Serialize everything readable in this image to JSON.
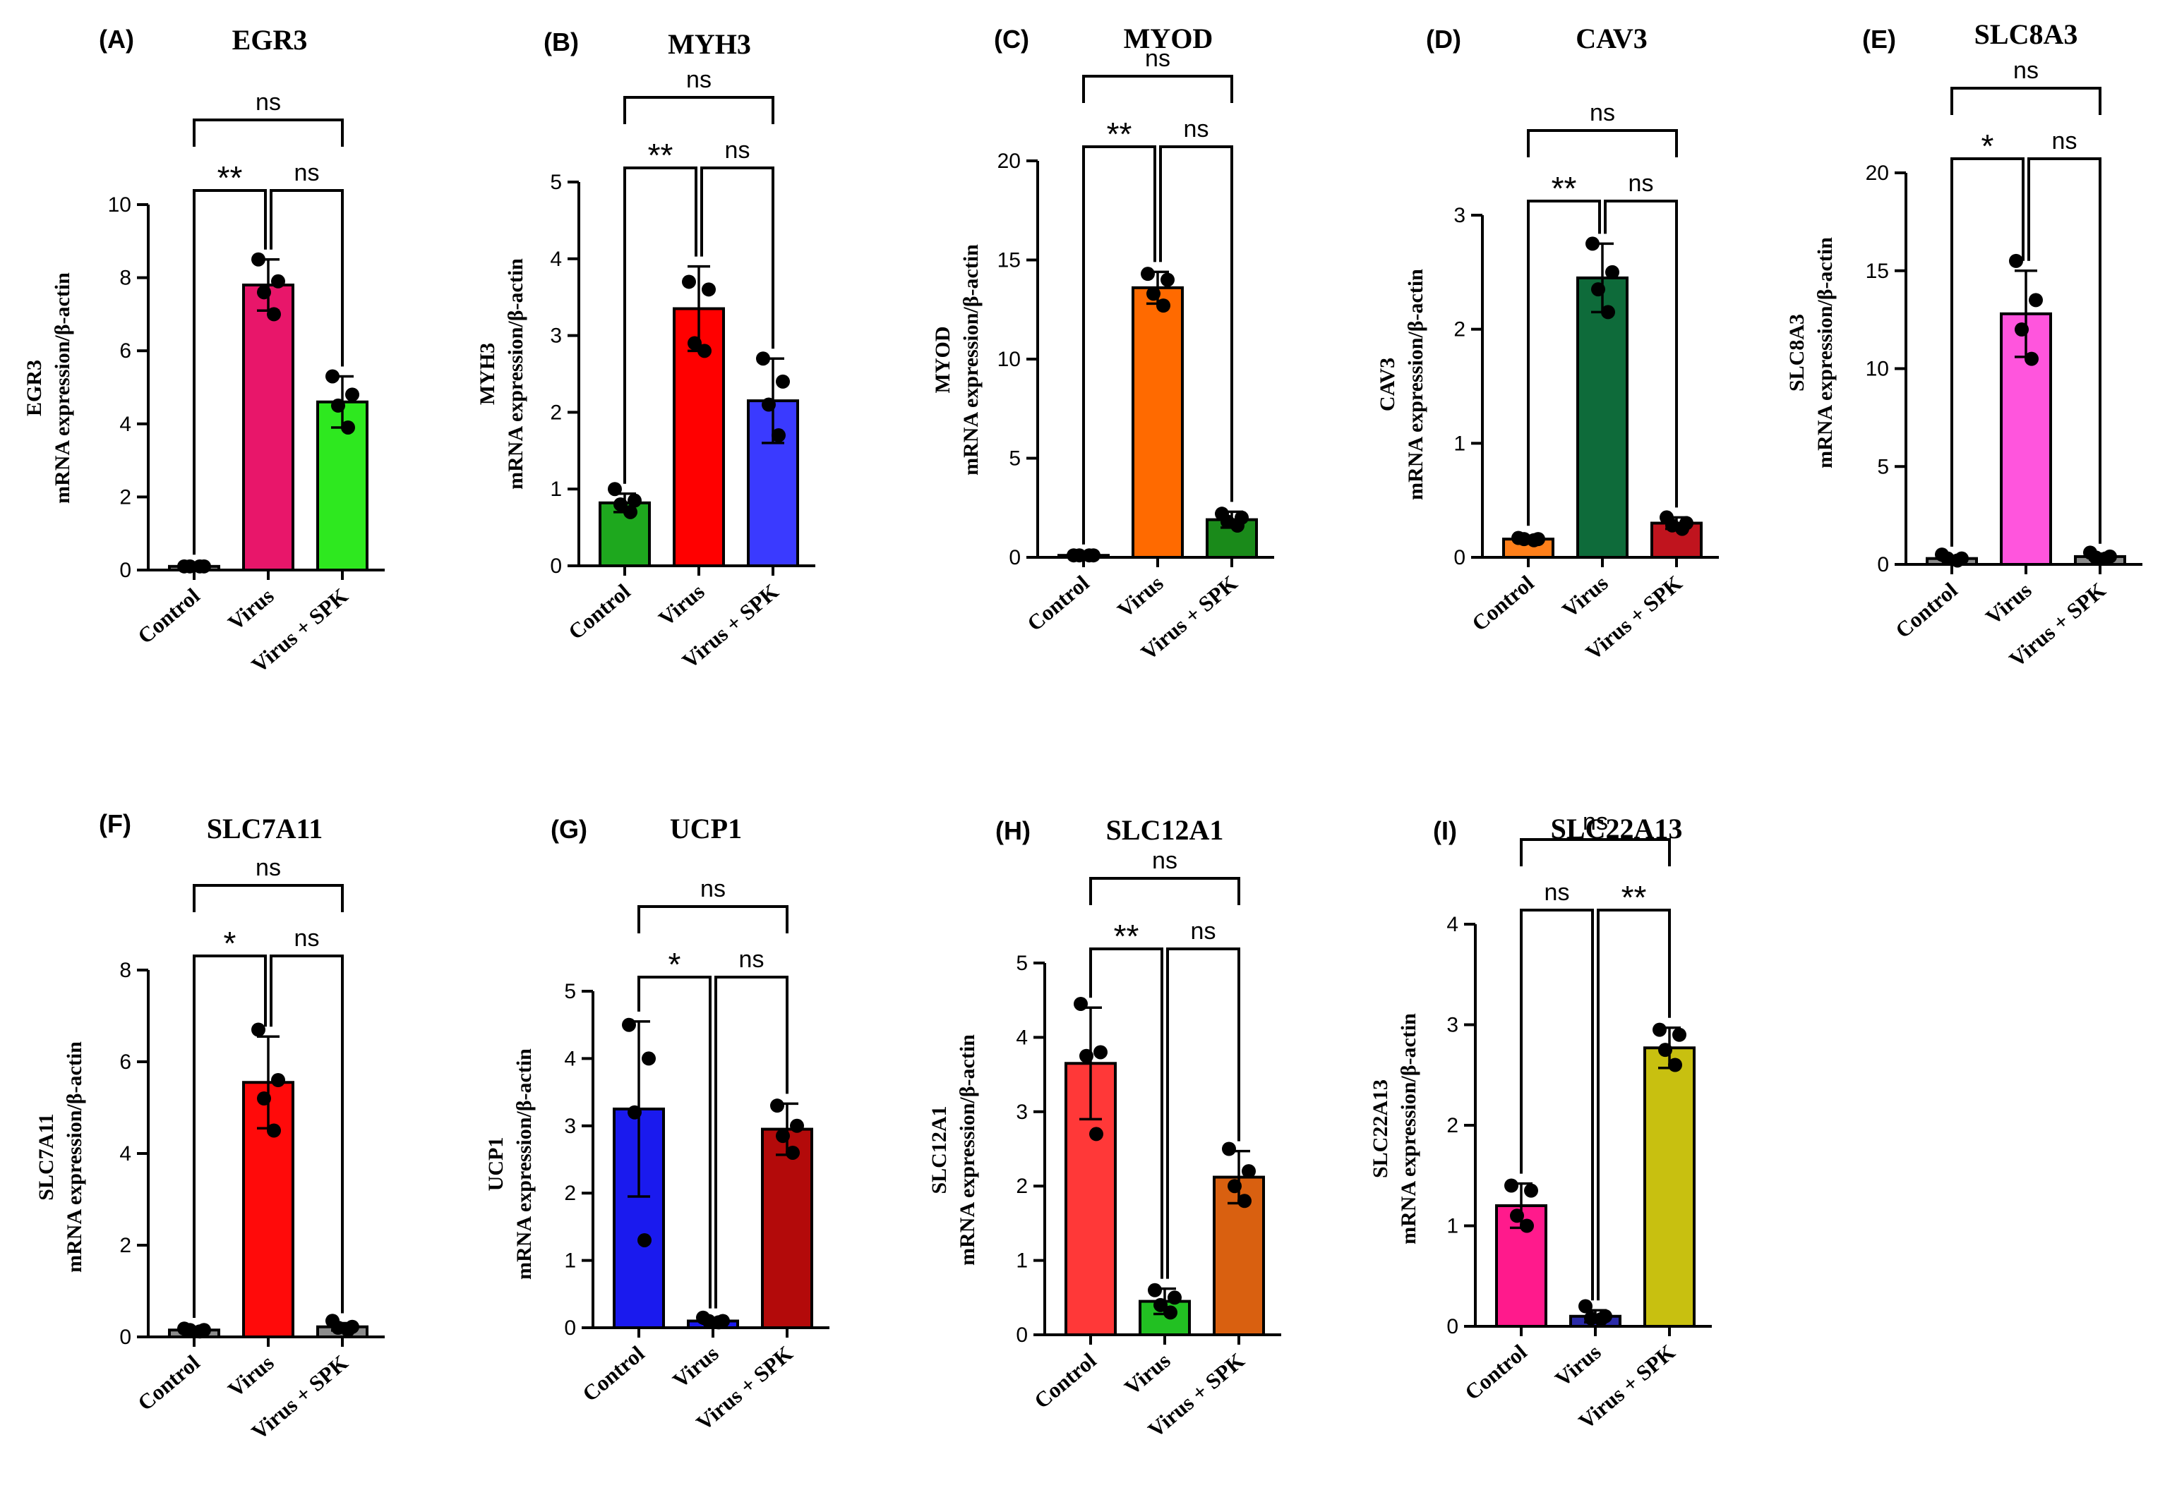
{
  "figure": {
    "groups": [
      "Control",
      "Virus",
      "Virus + SPK"
    ],
    "ylabel_common": "mRNA expression/β-actin"
  },
  "chart_data": [
    {
      "type": "bar",
      "panel": "(A)",
      "title": "EGR3",
      "ylabel_gene": "EGR3",
      "ylabel": "mRNA expression/β-actin",
      "categories": [
        "Control",
        "Virus",
        "Virus + SPK"
      ],
      "values": [
        0.1,
        7.8,
        4.6
      ],
      "errors": [
        0.05,
        0.7,
        0.7
      ],
      "points": [
        [
          0.1,
          0.1,
          0.1,
          0.1
        ],
        [
          8.5,
          7.9,
          7.6,
          7.0
        ],
        [
          5.3,
          4.8,
          4.5,
          3.9
        ]
      ],
      "colors": [
        "#8b8b8b",
        "#e8166a",
        "#2ee81f"
      ],
      "ylim": [
        0,
        10
      ],
      "yticks": [
        "0",
        "2",
        "4",
        "6",
        "8",
        "10"
      ],
      "significance": [
        {
          "from": 0,
          "to": 1,
          "label": "**",
          "level": 1
        },
        {
          "from": 1,
          "to": 2,
          "label": "ns",
          "level": 1
        },
        {
          "from": 0,
          "to": 2,
          "label": "ns",
          "level": 2
        }
      ]
    },
    {
      "type": "bar",
      "panel": "(B)",
      "title": "MYH3",
      "ylabel_gene": "MYH3",
      "ylabel": "mRNA expression/β-actin",
      "categories": [
        "Control",
        "Virus",
        "Virus + SPK"
      ],
      "values": [
        0.82,
        3.35,
        2.15
      ],
      "errors": [
        0.12,
        0.55,
        0.55
      ],
      "points": [
        [
          1.0,
          0.85,
          0.8,
          0.7
        ],
        [
          3.7,
          3.6,
          2.9,
          2.8
        ],
        [
          2.7,
          2.4,
          2.1,
          1.7
        ]
      ],
      "colors": [
        "#1ea81e",
        "#ff0000",
        "#3a3aff"
      ],
      "ylim": [
        0,
        5
      ],
      "yticks": [
        "0",
        "1",
        "2",
        "3",
        "4",
        "5"
      ],
      "significance": [
        {
          "from": 0,
          "to": 1,
          "label": "**",
          "level": 1
        },
        {
          "from": 1,
          "to": 2,
          "label": "ns",
          "level": 1
        },
        {
          "from": 0,
          "to": 2,
          "label": "ns",
          "level": 2
        }
      ]
    },
    {
      "type": "bar",
      "panel": "(C)",
      "title": "MYOD",
      "ylabel_gene": "MYOD",
      "ylabel": "mRNA expression/β-actin",
      "categories": [
        "Control",
        "Virus",
        "Virus + SPK"
      ],
      "values": [
        0.1,
        13.6,
        1.9
      ],
      "errors": [
        0.05,
        0.8,
        0.4
      ],
      "points": [
        [
          0.1,
          0.1,
          0.1,
          0.1
        ],
        [
          14.3,
          14.0,
          13.3,
          12.7
        ],
        [
          2.2,
          2.0,
          1.8,
          1.6
        ]
      ],
      "colors": [
        "#8b8b8b",
        "#ff6a00",
        "#1a8a1a"
      ],
      "ylim": [
        0,
        20
      ],
      "yticks": [
        "0",
        "5",
        "10",
        "15",
        "20"
      ],
      "significance": [
        {
          "from": 0,
          "to": 1,
          "label": "**",
          "level": 1
        },
        {
          "from": 1,
          "to": 2,
          "label": "ns",
          "level": 1
        },
        {
          "from": 0,
          "to": 2,
          "label": "ns",
          "level": 2
        }
      ]
    },
    {
      "type": "bar",
      "panel": "(D)",
      "title": "CAV3",
      "ylabel_gene": "CAV3",
      "ylabel": "mRNA expression/β-actin",
      "categories": [
        "Control",
        "Virus",
        "Virus + SPK"
      ],
      "values": [
        0.16,
        2.45,
        0.3
      ],
      "errors": [
        0.03,
        0.3,
        0.05
      ],
      "points": [
        [
          0.17,
          0.16,
          0.16,
          0.15
        ],
        [
          2.75,
          2.5,
          2.35,
          2.15
        ],
        [
          0.35,
          0.3,
          0.28,
          0.25
        ]
      ],
      "colors": [
        "#ff7f1a",
        "#0e6b3a",
        "#c0141e"
      ],
      "ylim": [
        0,
        3
      ],
      "yticks": [
        "0",
        "1",
        "2",
        "3"
      ],
      "significance": [
        {
          "from": 0,
          "to": 1,
          "label": "**",
          "level": 1
        },
        {
          "from": 1,
          "to": 2,
          "label": "ns",
          "level": 1
        },
        {
          "from": 0,
          "to": 2,
          "label": "ns",
          "level": 2
        }
      ]
    },
    {
      "type": "bar",
      "panel": "(E)",
      "title": "SLC8A3",
      "ylabel_gene": "SLC8A3",
      "ylabel": "mRNA expression/β-actin",
      "categories": [
        "Control",
        "Virus",
        "Virus + SPK"
      ],
      "values": [
        0.3,
        12.8,
        0.4
      ],
      "errors": [
        0.1,
        2.2,
        0.15
      ],
      "points": [
        [
          0.5,
          0.3,
          0.3,
          0.2
        ],
        [
          15.5,
          13.5,
          12.0,
          10.5
        ],
        [
          0.6,
          0.4,
          0.35,
          0.3
        ]
      ],
      "colors": [
        "#8b8b8b",
        "#ff55dd",
        "#8b8b8b"
      ],
      "ylim": [
        0,
        20
      ],
      "yticks": [
        "0",
        "5",
        "10",
        "15",
        "20"
      ],
      "significance": [
        {
          "from": 0,
          "to": 1,
          "label": "*",
          "level": 1
        },
        {
          "from": 1,
          "to": 2,
          "label": "ns",
          "level": 1
        },
        {
          "from": 0,
          "to": 2,
          "label": "ns",
          "level": 2
        }
      ]
    },
    {
      "type": "bar",
      "panel": "(F)",
      "title": "SLC7A11",
      "ylabel_gene": "SLC7A11",
      "ylabel": "mRNA expression/β-actin",
      "categories": [
        "Control",
        "Virus",
        "Virus + SPK"
      ],
      "values": [
        0.15,
        5.55,
        0.22
      ],
      "errors": [
        0.05,
        1.0,
        0.08
      ],
      "points": [
        [
          0.18,
          0.15,
          0.15,
          0.12
        ],
        [
          6.7,
          5.6,
          5.2,
          4.5
        ],
        [
          0.35,
          0.22,
          0.2,
          0.15
        ]
      ],
      "colors": [
        "#8b8b8b",
        "#ff0a0a",
        "#8b8b8b"
      ],
      "ylim": [
        0,
        8
      ],
      "yticks": [
        "0",
        "2",
        "4",
        "6",
        "8"
      ],
      "significance": [
        {
          "from": 0,
          "to": 1,
          "label": "*",
          "level": 1
        },
        {
          "from": 1,
          "to": 2,
          "label": "ns",
          "level": 1
        },
        {
          "from": 0,
          "to": 2,
          "label": "ns",
          "level": 2
        }
      ]
    },
    {
      "type": "bar",
      "panel": "(G)",
      "title": "UCP1",
      "ylabel_gene": "UCP1",
      "ylabel": "mRNA expression/β-actin",
      "categories": [
        "Control",
        "Virus",
        "Virus + SPK"
      ],
      "values": [
        3.25,
        0.1,
        2.95
      ],
      "errors": [
        1.3,
        0.04,
        0.38
      ],
      "points": [
        [
          4.5,
          4.0,
          3.2,
          1.3
        ],
        [
          0.15,
          0.1,
          0.1,
          0.08
        ],
        [
          3.3,
          3.0,
          2.85,
          2.6
        ]
      ],
      "colors": [
        "#1a1aee",
        "#1a1aee",
        "#b30a0a"
      ],
      "ylim": [
        0,
        5
      ],
      "yticks": [
        "0",
        "1",
        "2",
        "3",
        "4",
        "5"
      ],
      "significance": [
        {
          "from": 0,
          "to": 1,
          "label": "*",
          "level": 1
        },
        {
          "from": 1,
          "to": 2,
          "label": "ns",
          "level": 1
        },
        {
          "from": 0,
          "to": 2,
          "label": "ns",
          "level": 2
        }
      ]
    },
    {
      "type": "bar",
      "panel": "(H)",
      "title": "SLC12A1",
      "ylabel_gene": "SLC12A1",
      "ylabel": "mRNA expression/β-actin",
      "categories": [
        "Control",
        "Virus",
        "Virus + SPK"
      ],
      "values": [
        3.65,
        0.45,
        2.12
      ],
      "errors": [
        0.75,
        0.17,
        0.35
      ],
      "points": [
        [
          4.45,
          3.8,
          3.75,
          2.7
        ],
        [
          0.6,
          0.5,
          0.4,
          0.3
        ],
        [
          2.5,
          2.2,
          2.0,
          1.8
        ]
      ],
      "colors": [
        "#ff3838",
        "#22c022",
        "#d96010"
      ],
      "ylim": [
        0,
        5
      ],
      "yticks": [
        "0",
        "1",
        "2",
        "3",
        "4",
        "5"
      ],
      "significance": [
        {
          "from": 0,
          "to": 1,
          "label": "**",
          "level": 1
        },
        {
          "from": 1,
          "to": 2,
          "label": "ns",
          "level": 1
        },
        {
          "from": 0,
          "to": 2,
          "label": "ns",
          "level": 2
        }
      ]
    },
    {
      "type": "bar",
      "panel": "(I)",
      "title": "SLC22A13",
      "ylabel_gene": "SLC22A13",
      "ylabel": "mRNA expression/β-actin",
      "categories": [
        "Control",
        "Virus",
        "Virus + SPK"
      ],
      "values": [
        1.2,
        0.1,
        2.77
      ],
      "errors": [
        0.22,
        0.06,
        0.2
      ],
      "points": [
        [
          1.4,
          1.35,
          1.1,
          1.0
        ],
        [
          0.2,
          0.1,
          0.08,
          0.07
        ],
        [
          2.95,
          2.9,
          2.75,
          2.6
        ]
      ],
      "colors": [
        "#ff1a8c",
        "#2a2aa8",
        "#c8c010"
      ],
      "ylim": [
        0,
        4
      ],
      "yticks": [
        "0",
        "1",
        "2",
        "3",
        "4"
      ],
      "significance": [
        {
          "from": 0,
          "to": 1,
          "label": "ns",
          "level": 1
        },
        {
          "from": 1,
          "to": 2,
          "label": "**",
          "level": 1
        },
        {
          "from": 0,
          "to": 2,
          "label": "ns",
          "level": 2
        }
      ]
    }
  ]
}
